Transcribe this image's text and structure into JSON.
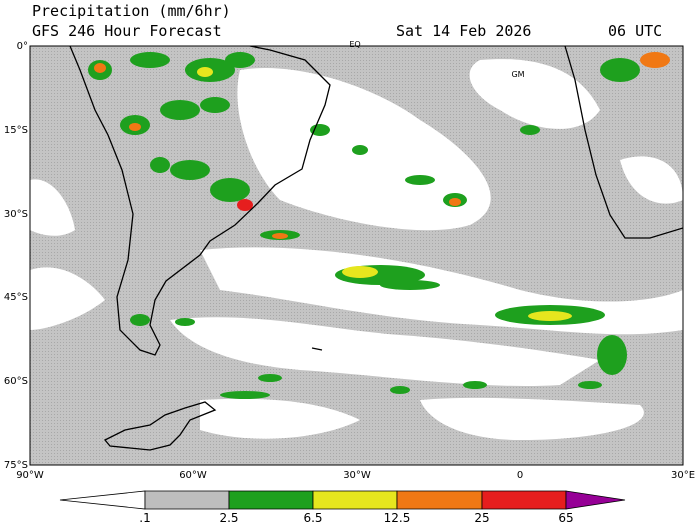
{
  "header": {
    "title": "Precipitation (mm/6hr)",
    "subtitle": "GFS 246 Hour Forecast",
    "date": "Sat 14 Feb 2026",
    "time": "06 UTC"
  },
  "map": {
    "lat_labels": [
      "0°",
      "15°S",
      "30°S",
      "45°S",
      "60°S",
      "75°S"
    ],
    "lon_labels": [
      "90°W",
      "60°W",
      "30°W",
      "0",
      "30°E"
    ],
    "place_labels": [
      "EQ",
      "GM"
    ]
  },
  "legend": {
    "labels": [
      ".1",
      "2.5",
      "6.5",
      "12.5",
      "25",
      "65"
    ],
    "colors": [
      "#ffffff",
      "#bebebe",
      "#1ea01e",
      "#e6e61e",
      "#f07814",
      "#e61e1e",
      "#960096"
    ]
  }
}
